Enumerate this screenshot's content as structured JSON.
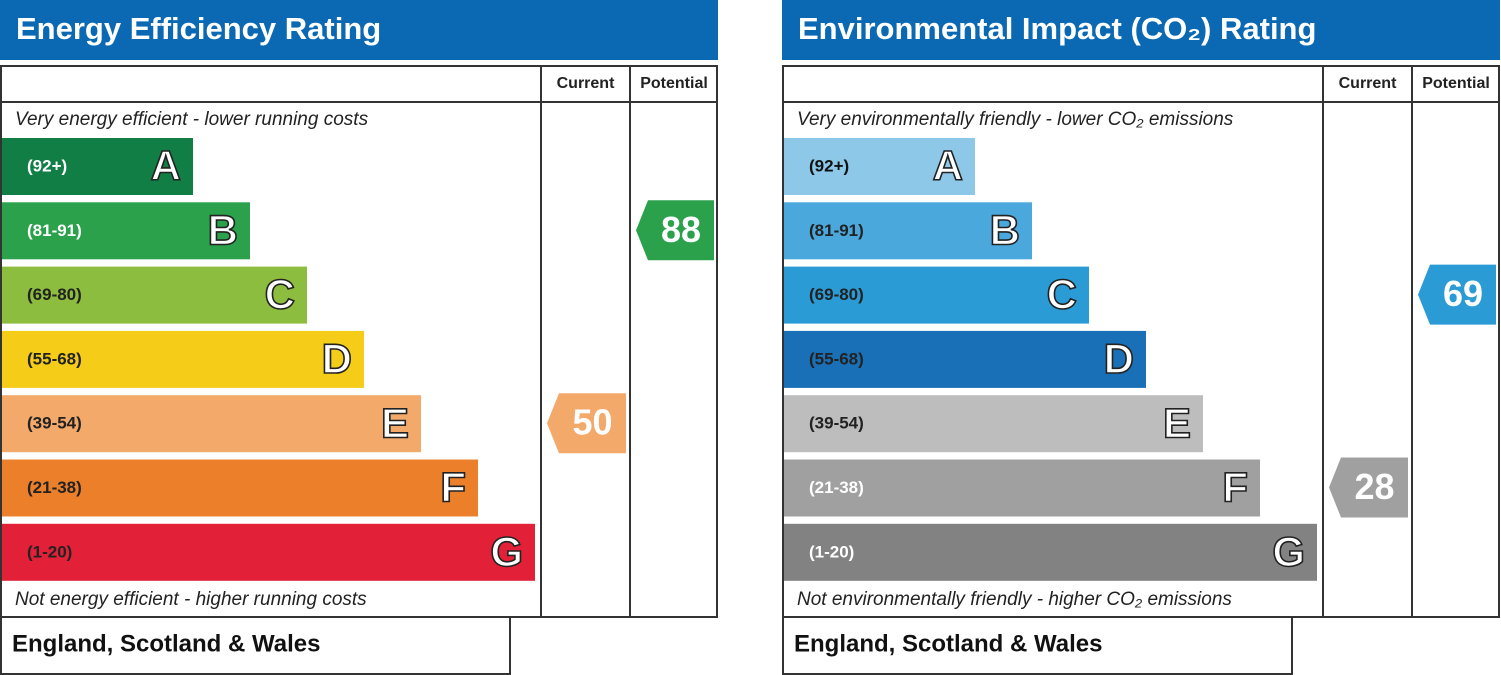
{
  "panels": [
    {
      "title": "Energy Efficiency Rating",
      "columns": [
        "Current",
        "Potential"
      ],
      "top_note": "Very energy efficient - lower running costs",
      "bottom_note": "Not energy efficient - higher running costs",
      "bands": [
        {
          "range": "(92+)",
          "letter": "A",
          "color": "#117e45",
          "label_color": "#ffffff"
        },
        {
          "range": "(81-91)",
          "letter": "B",
          "color": "#2ba14b",
          "label_color": "#ffffff"
        },
        {
          "range": "(69-80)",
          "letter": "C",
          "color": "#8dbd3e",
          "label_color": "#222222"
        },
        {
          "range": "(55-68)",
          "letter": "D",
          "color": "#f5cd19",
          "label_color": "#222222"
        },
        {
          "range": "(39-54)",
          "letter": "E",
          "color": "#f2a96a",
          "label_color": "#222222"
        },
        {
          "range": "(21-38)",
          "letter": "F",
          "color": "#ec7f2a",
          "label_color": "#222222"
        },
        {
          "range": "(1-20)",
          "letter": "G",
          "color": "#e22139",
          "label_color": "#222222"
        }
      ],
      "current": 50,
      "potential": 88,
      "footer": "England, Scotland & Wales"
    },
    {
      "title": "Environmental Impact (CO₂) Rating",
      "columns": [
        "Current",
        "Potential"
      ],
      "top_note": "Very environmentally friendly - lower CO₂ emissions",
      "bottom_note": "Not environmentally friendly - higher CO₂ emissions",
      "bands": [
        {
          "range": "(92+)",
          "letter": "A",
          "color": "#8dc8e8",
          "label_color": "#111111"
        },
        {
          "range": "(81-91)",
          "letter": "B",
          "color": "#4aa8dc",
          "label_color": "#222222"
        },
        {
          "range": "(69-80)",
          "letter": "C",
          "color": "#2b9bd6",
          "label_color": "#222222"
        },
        {
          "range": "(55-68)",
          "letter": "D",
          "color": "#1a70b7",
          "label_color": "#222222"
        },
        {
          "range": "(39-54)",
          "letter": "E",
          "color": "#bdbdbd",
          "label_color": "#222222"
        },
        {
          "range": "(21-38)",
          "letter": "F",
          "color": "#a0a0a0",
          "label_color": "#ffffff"
        },
        {
          "range": "(1-20)",
          "letter": "G",
          "color": "#828282",
          "label_color": "#ffffff"
        }
      ],
      "current": 28,
      "potential": 69,
      "footer": "England, Scotland & Wales"
    }
  ]
}
